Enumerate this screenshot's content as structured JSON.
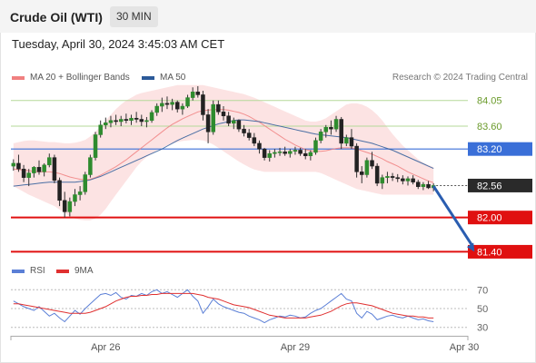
{
  "header": {
    "title": "Crude Oil (WTI)",
    "interval": "30 MIN"
  },
  "timestamp": "Tuesday, April 30, 2024 3:45:03 AM CET",
  "legend": {
    "ma20_label": "MA 20 + Bollinger Bands",
    "ma50_label": "MA 50",
    "credit": "Research © 2024 Trading Central",
    "ma20_color": "#f08080",
    "ma50_color": "#2c5a99"
  },
  "rsi_legend": {
    "rsi_label": "RSI",
    "ma_label": "9MA",
    "rsi_color": "#5b7fd6",
    "ma_color": "#e03030"
  },
  "chart_data": [
    {
      "type": "candlestick",
      "ylim": [
        81.2,
        84.3
      ],
      "x_ticks": [
        "Apr 26",
        "Apr 29",
        "Apr 30"
      ],
      "x_tick_bars": [
        18,
        55,
        88
      ],
      "candles": [
        [
          82.9,
          83.02,
          82.82,
          82.95
        ],
        [
          82.95,
          83.1,
          82.8,
          82.85
        ],
        [
          82.85,
          82.92,
          82.62,
          82.7
        ],
        [
          82.7,
          82.85,
          82.55,
          82.78
        ],
        [
          82.78,
          82.9,
          82.7,
          82.88
        ],
        [
          82.88,
          83.0,
          82.75,
          82.8
        ],
        [
          82.8,
          82.95,
          82.72,
          82.92
        ],
        [
          82.92,
          83.12,
          82.88,
          83.05
        ],
        [
          83.05,
          83.1,
          82.6,
          82.65
        ],
        [
          82.65,
          82.7,
          82.2,
          82.3
        ],
        [
          82.3,
          82.45,
          82.0,
          82.1
        ],
        [
          82.1,
          82.35,
          82.02,
          82.28
        ],
        [
          82.28,
          82.5,
          82.2,
          82.4
        ],
        [
          82.4,
          82.55,
          82.3,
          82.45
        ],
        [
          82.45,
          82.8,
          82.4,
          82.75
        ],
        [
          82.75,
          83.1,
          82.7,
          83.05
        ],
        [
          83.05,
          83.5,
          83.0,
          83.45
        ],
        [
          83.45,
          83.7,
          83.4,
          83.62
        ],
        [
          83.62,
          83.75,
          83.55,
          83.66
        ],
        [
          83.66,
          83.78,
          83.58,
          83.7
        ],
        [
          83.7,
          83.8,
          83.62,
          83.68
        ],
        [
          83.68,
          83.78,
          83.6,
          83.72
        ],
        [
          83.72,
          83.82,
          83.65,
          83.7
        ],
        [
          83.7,
          83.8,
          83.62,
          83.74
        ],
        [
          83.74,
          83.85,
          83.66,
          83.72
        ],
        [
          83.72,
          83.8,
          83.6,
          83.68
        ],
        [
          83.68,
          83.76,
          83.58,
          83.7
        ],
        [
          83.7,
          83.88,
          83.66,
          83.84
        ],
        [
          83.84,
          84.0,
          83.78,
          83.95
        ],
        [
          83.95,
          84.1,
          83.85,
          84.0
        ],
        [
          84.0,
          84.12,
          83.9,
          83.98
        ],
        [
          83.98,
          84.08,
          83.88,
          84.02
        ],
        [
          84.02,
          84.05,
          83.84,
          83.9
        ],
        [
          83.9,
          84.0,
          83.8,
          83.95
        ],
        [
          83.95,
          84.15,
          83.92,
          84.1
        ],
        [
          84.1,
          84.28,
          84.05,
          84.2
        ],
        [
          84.2,
          84.3,
          84.1,
          84.15
        ],
        [
          84.15,
          84.22,
          83.7,
          83.8
        ],
        [
          83.8,
          83.9,
          83.3,
          83.5
        ],
        [
          83.5,
          84.05,
          83.45,
          83.98
        ],
        [
          83.98,
          84.05,
          83.8,
          83.85
        ],
        [
          83.85,
          83.95,
          83.7,
          83.78
        ],
        [
          83.78,
          83.85,
          83.6,
          83.65
        ],
        [
          83.65,
          83.75,
          83.55,
          83.7
        ],
        [
          83.7,
          83.72,
          83.5,
          83.55
        ],
        [
          83.55,
          83.62,
          83.42,
          83.48
        ],
        [
          83.48,
          83.55,
          83.35,
          83.4
        ],
        [
          83.4,
          83.48,
          83.25,
          83.3
        ],
        [
          83.3,
          83.35,
          83.12,
          83.2
        ],
        [
          83.2,
          83.22,
          83.0,
          83.05
        ],
        [
          83.05,
          83.18,
          82.98,
          83.12
        ],
        [
          83.12,
          83.2,
          83.05,
          83.14
        ],
        [
          83.14,
          83.22,
          83.08,
          83.15
        ],
        [
          83.15,
          83.24,
          83.08,
          83.12
        ],
        [
          83.12,
          83.2,
          83.05,
          83.16
        ],
        [
          83.16,
          83.24,
          83.1,
          83.18
        ],
        [
          83.18,
          83.22,
          83.08,
          83.12
        ],
        [
          83.12,
          83.2,
          83.02,
          83.08
        ],
        [
          83.08,
          83.18,
          83.0,
          83.14
        ],
        [
          83.14,
          83.4,
          83.1,
          83.35
        ],
        [
          83.35,
          83.55,
          83.3,
          83.5
        ],
        [
          83.5,
          83.62,
          83.4,
          83.58
        ],
        [
          83.58,
          83.7,
          83.45,
          83.55
        ],
        [
          83.55,
          83.78,
          83.5,
          83.72
        ],
        [
          83.72,
          83.76,
          83.2,
          83.3
        ],
        [
          83.3,
          83.45,
          83.25,
          83.4
        ],
        [
          83.4,
          83.55,
          83.2,
          83.25
        ],
        [
          83.25,
          83.3,
          82.7,
          82.8
        ],
        [
          82.8,
          82.9,
          82.6,
          82.75
        ],
        [
          82.75,
          83.05,
          82.7,
          83.0
        ],
        [
          83.0,
          83.15,
          82.85,
          82.9
        ],
        [
          82.9,
          82.95,
          82.55,
          82.6
        ],
        [
          82.6,
          82.75,
          82.5,
          82.7
        ],
        [
          82.7,
          82.8,
          82.6,
          82.72
        ],
        [
          82.72,
          82.78,
          82.64,
          82.7
        ],
        [
          82.7,
          82.76,
          82.62,
          82.68
        ],
        [
          82.68,
          82.74,
          82.58,
          82.64
        ],
        [
          82.64,
          82.72,
          82.56,
          82.68
        ],
        [
          82.68,
          82.74,
          82.58,
          82.62
        ],
        [
          82.62,
          82.66,
          82.5,
          82.54
        ],
        [
          82.54,
          82.62,
          82.48,
          82.58
        ],
        [
          82.58,
          82.64,
          82.5,
          82.52
        ],
        [
          82.52,
          82.6,
          82.46,
          82.56
        ]
      ]
    },
    {
      "type": "line",
      "series": [
        {
          "name": "MA 20",
          "values": [
            82.85,
            82.84,
            82.83,
            82.82,
            82.81,
            82.8,
            82.8,
            82.8,
            82.79,
            82.77,
            82.74,
            82.71,
            82.69,
            82.67,
            82.66,
            82.67,
            82.7,
            82.74,
            82.79,
            82.84,
            82.89,
            82.95,
            83.01,
            83.08,
            83.15,
            83.22,
            83.29,
            83.36,
            83.43,
            83.5,
            83.57,
            83.63,
            83.68,
            83.73,
            83.77,
            83.81,
            83.85,
            83.87,
            83.88,
            83.89,
            83.89,
            83.89,
            83.88,
            83.86,
            83.84,
            83.81,
            83.77,
            83.72,
            83.67,
            83.61,
            83.55,
            83.49,
            83.43,
            83.37,
            83.32,
            83.27,
            83.23,
            83.19,
            83.17,
            83.16,
            83.16,
            83.17,
            83.19,
            83.21,
            83.22,
            83.22,
            83.22,
            83.2,
            83.17,
            83.14,
            83.11,
            83.07,
            83.03,
            82.98,
            82.94,
            82.9,
            82.85,
            82.8,
            82.76,
            82.72,
            82.68,
            82.64,
            82.61
          ]
        },
        {
          "name": "MA 50",
          "values": [
            82.55,
            82.56,
            82.57,
            82.58,
            82.59,
            82.6,
            82.61,
            82.62,
            82.62,
            82.62,
            82.62,
            82.62,
            82.62,
            82.63,
            82.64,
            82.66,
            82.69,
            82.72,
            82.76,
            82.8,
            82.84,
            82.88,
            82.92,
            82.96,
            83.0,
            83.04,
            83.08,
            83.12,
            83.16,
            83.2,
            83.25,
            83.3,
            83.35,
            83.39,
            83.43,
            83.47,
            83.51,
            83.55,
            83.58,
            83.61,
            83.64,
            83.66,
            83.68,
            83.7,
            83.71,
            83.71,
            83.7,
            83.69,
            83.68,
            83.66,
            83.64,
            83.62,
            83.6,
            83.58,
            83.56,
            83.54,
            83.52,
            83.5,
            83.48,
            83.46,
            83.45,
            83.44,
            83.43,
            83.42,
            83.41,
            83.4,
            83.38,
            83.36,
            83.34,
            83.32,
            83.3,
            83.27,
            83.24,
            83.21,
            83.18,
            83.14,
            83.1,
            83.06,
            83.02,
            82.98,
            82.94,
            82.9,
            82.86
          ]
        }
      ],
      "bollinger_upper": [
        83.3,
        83.32,
        83.34,
        83.35,
        83.35,
        83.34,
        83.33,
        83.32,
        83.32,
        83.31,
        83.3,
        83.3,
        83.31,
        83.33,
        83.36,
        83.42,
        83.5,
        83.6,
        83.7,
        83.8,
        83.9,
        83.98,
        84.05,
        84.1,
        84.15,
        84.18,
        84.2,
        84.22,
        84.24,
        84.26,
        84.28,
        84.3,
        84.32,
        84.32,
        84.32,
        84.32,
        84.32,
        84.32,
        84.3,
        84.28,
        84.26,
        84.24,
        84.22,
        84.2,
        84.18,
        84.16,
        84.13,
        84.1,
        84.06,
        84.02,
        83.98,
        83.94,
        83.9,
        83.86,
        83.82,
        83.78,
        83.74,
        83.7,
        83.68,
        83.68,
        83.7,
        83.74,
        83.8,
        83.86,
        83.92,
        83.98,
        84.0,
        84.0,
        83.98,
        83.94,
        83.88,
        83.8,
        83.7,
        83.58,
        83.46,
        83.36,
        83.26,
        83.18,
        83.1,
        83.02,
        82.96,
        82.92,
        82.88
      ],
      "bollinger_lower": [
        82.55,
        82.5,
        82.45,
        82.4,
        82.36,
        82.32,
        82.28,
        82.24,
        82.2,
        82.14,
        82.08,
        82.02,
        81.98,
        81.96,
        81.95,
        81.95,
        81.98,
        82.05,
        82.15,
        82.28,
        82.4,
        82.52,
        82.64,
        82.76,
        82.88,
        82.98,
        83.06,
        83.12,
        83.18,
        83.22,
        83.26,
        83.3,
        83.32,
        83.34,
        83.35,
        83.36,
        83.36,
        83.35,
        83.32,
        83.28,
        83.22,
        83.16,
        83.1,
        83.04,
        82.98,
        82.93,
        82.88,
        82.84,
        82.82,
        82.8,
        82.8,
        82.8,
        82.8,
        82.8,
        82.8,
        82.8,
        82.8,
        82.8,
        82.8,
        82.8,
        82.78,
        82.74,
        82.7,
        82.66,
        82.62,
        82.58,
        82.54,
        82.5,
        82.48,
        82.46,
        82.44,
        82.42,
        82.4,
        82.4,
        82.4,
        82.4,
        82.4,
        82.4,
        82.4,
        82.4,
        82.4,
        82.4,
        82.4
      ]
    },
    {
      "type": "horizontal-levels",
      "levels": [
        {
          "value": 84.05,
          "label": "84.05",
          "kind": "resistance"
        },
        {
          "value": 83.6,
          "label": "83.60",
          "kind": "resistance"
        },
        {
          "value": 83.2,
          "label": "83.20",
          "kind": "pivot"
        },
        {
          "value": 82.56,
          "label": "82.56",
          "kind": "last-price"
        },
        {
          "value": 82.0,
          "label": "82.00",
          "kind": "support"
        },
        {
          "value": 81.4,
          "label": "81.40",
          "kind": "support"
        }
      ],
      "arrow": {
        "from_bar": 82,
        "from_value": 82.55,
        "to_bar": 90,
        "to_value": 81.4
      }
    },
    {
      "type": "line",
      "ylim": [
        22,
        78
      ],
      "y_ticks": [
        70,
        50,
        30
      ],
      "series": [
        {
          "name": "RSI",
          "values": [
            58,
            55,
            52,
            50,
            48,
            52,
            47,
            42,
            45,
            40,
            36,
            42,
            48,
            44,
            50,
            55,
            60,
            65,
            66,
            64,
            67,
            62,
            60,
            64,
            63,
            66,
            64,
            68,
            70,
            66,
            68,
            65,
            62,
            66,
            70,
            63,
            58,
            45,
            52,
            60,
            55,
            52,
            50,
            48,
            46,
            45,
            42,
            40,
            38,
            35,
            38,
            40,
            42,
            41,
            43,
            42,
            40,
            41,
            45,
            48,
            50,
            54,
            58,
            62,
            66,
            60,
            58,
            45,
            40,
            47,
            44,
            38,
            40,
            42,
            43,
            41,
            40,
            42,
            40,
            38,
            39,
            37,
            36
          ]
        },
        {
          "name": "9MA",
          "values": [
            55,
            55,
            54,
            53,
            52,
            51,
            50,
            49,
            48,
            47,
            46,
            45,
            45,
            45,
            45,
            46,
            48,
            50,
            52,
            55,
            58,
            60,
            62,
            63,
            63,
            64,
            64,
            65,
            65,
            66,
            66,
            66,
            66,
            66,
            66,
            66,
            65,
            64,
            62,
            61,
            60,
            58,
            56,
            54,
            53,
            52,
            51,
            49,
            47,
            45,
            43,
            42,
            41,
            40,
            40,
            40,
            40,
            40,
            41,
            42,
            43,
            45,
            47,
            50,
            53,
            55,
            56,
            56,
            55,
            54,
            53,
            51,
            49,
            47,
            45,
            44,
            43,
            42,
            42,
            41,
            41,
            40,
            40
          ]
        }
      ]
    }
  ]
}
